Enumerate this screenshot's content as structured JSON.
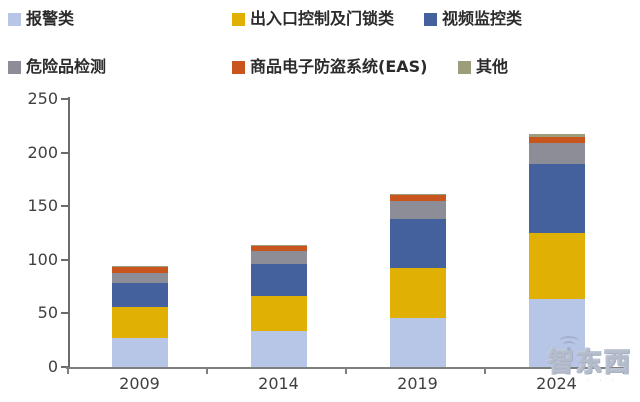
{
  "legend": {
    "items": [
      {
        "label": "报警类",
        "color": "#B7C5E6"
      },
      {
        "label": "出入口控制及门锁类",
        "color": "#E0B005"
      },
      {
        "label": "视频监控类",
        "color": "#44619E"
      },
      {
        "label": "危险品检测",
        "color": "#8D8D98"
      },
      {
        "label": "商品电子防盗系统(EAS)",
        "color": "#C8541E"
      },
      {
        "label": "其他",
        "color": "#9D9D7B"
      }
    ]
  },
  "chart_data": {
    "type": "bar",
    "stacked": true,
    "title": "",
    "xlabel": "",
    "ylabel": "",
    "categories": [
      "2009",
      "2014",
      "2019",
      "2024"
    ],
    "series": [
      {
        "name": "报警类",
        "color": "#B7C5E6",
        "values": [
          27,
          34,
          46,
          63
        ]
      },
      {
        "name": "出入口控制及门锁类",
        "color": "#E0B005",
        "values": [
          29,
          32,
          46,
          62
        ]
      },
      {
        "name": "视频监控类",
        "color": "#44619E",
        "values": [
          22,
          30,
          46,
          64
        ]
      },
      {
        "name": "危险品检测",
        "color": "#8D8D98",
        "values": [
          10,
          12,
          17,
          20
        ]
      },
      {
        "name": "商品电子防盗系统(EAS)",
        "color": "#C8541E",
        "values": [
          5,
          5,
          5,
          6
        ]
      },
      {
        "name": "其他",
        "color": "#9D9D7B",
        "values": [
          1,
          1,
          1,
          2
        ]
      }
    ],
    "totals": [
      94,
      114,
      161,
      217
    ],
    "ylim": [
      0,
      250
    ],
    "ytick_step": 50,
    "yticks": [
      "0",
      "50",
      "100",
      "150",
      "200",
      "250"
    ],
    "grid": false,
    "legend_position": "top"
  },
  "watermark": {
    "text": "智东西"
  }
}
